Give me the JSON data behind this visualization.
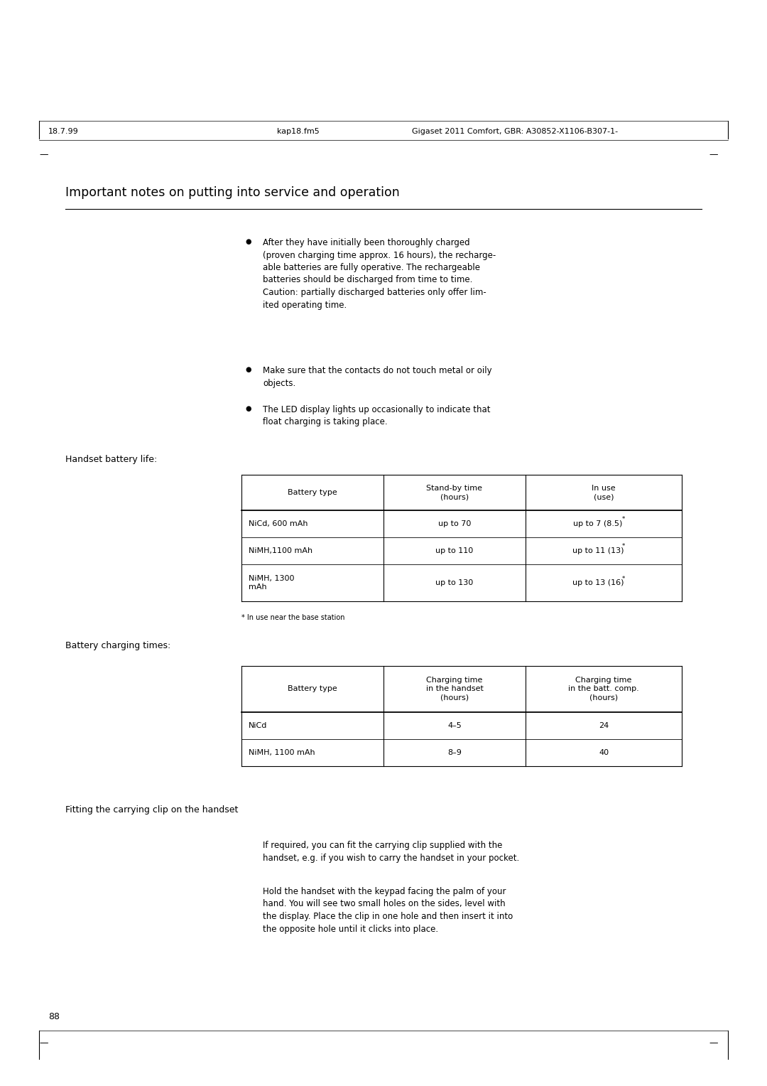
{
  "header_left": "18.7.99",
  "header_center": "kap18.fm5",
  "header_right": "Gigaset 2011 Comfort, GBR: A30852-X1106-B307-1-",
  "title": "Important notes on putting into service and operation",
  "bullet_points": [
    "After they have initially been thoroughly charged\n(proven charging time approx. 16 hours), the recharge-\nable batteries are fully operative. The rechargeable\nbatteries should be discharged from time to time.\nCaution: partially discharged batteries only offer lim-\nited operating time.",
    "Make sure that the contacts do not touch metal or oily\nobjects.",
    "The LED display lights up occasionally to indicate that\nfloat charging is taking place."
  ],
  "handset_battery_label": "Handset battery life:",
  "table1_headers": [
    "Battery type",
    "Stand-by time\n(hours)",
    "In use\n(use)"
  ],
  "table1_rows": [
    [
      "NiCd, 600 mAh",
      "up to 70",
      "up to 7 (8.5"
    ],
    [
      "NiMH,1100 mAh",
      "up to 110",
      "up to 11 (13"
    ],
    [
      "NiMH, 1300\nmAh",
      "up to 130",
      "up to 13 (16"
    ]
  ],
  "table1_superscripts": [
    "*",
    "*",
    "*"
  ],
  "table1_footnote": "* In use near the base station",
  "battery_charging_label": "Battery charging times:",
  "table2_headers": [
    "Battery type",
    "Charging time\nin the handset\n(hours)",
    "Charging time\nin the batt. comp.\n(hours)"
  ],
  "table2_rows": [
    [
      "NiCd",
      "4–5",
      "24"
    ],
    [
      "NiMH, 1100 mAh",
      "8–9",
      "40"
    ]
  ],
  "fitting_label": "Fitting the carrying clip on the handset",
  "fitting_text1": "If required, you can fit the carrying clip supplied with the\nhandset, e.g. if you wish to carry the handset in your pocket.",
  "fitting_text2": "Hold the handset with the keypad facing the palm of your\nhand. You will see two small holes on the sides, level with\nthe display. Place the clip in one hole and then insert it into\nthe opposite hole until it clicks into place.",
  "page_number": "88",
  "bg_color": "#ffffff",
  "text_color": "#000000",
  "font_size_header": 8.0,
  "font_size_title": 12.5,
  "font_size_body": 8.5,
  "font_size_label": 9.0,
  "font_size_table": 8.0,
  "font_size_page": 9.0
}
